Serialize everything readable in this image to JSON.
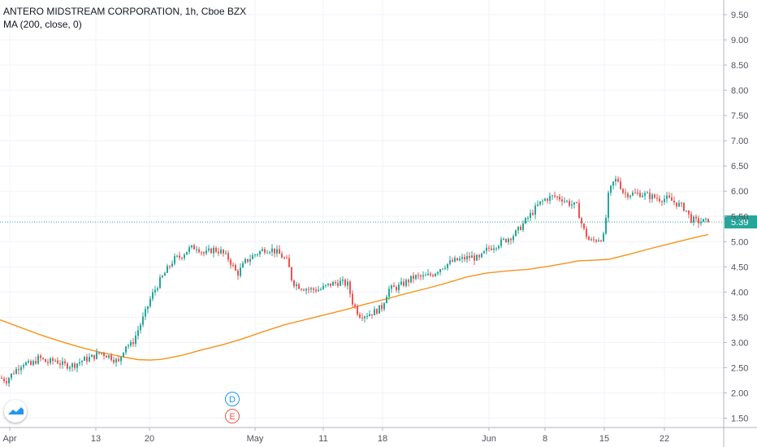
{
  "legend": {
    "title": "ANTERO MIDSTREAM CORPORATION, 1h, Cboe BZX",
    "indicator": "MA (200, close, 0)"
  },
  "markers": {
    "dividend": "D",
    "earnings": "E"
  },
  "colors": {
    "up": "#26a69a",
    "down": "#ef5350",
    "ma": "#f7931a",
    "price_line": "#26a69a",
    "grid": "#f0f3fa",
    "axis_text": "#50535e",
    "dividend_marker": "#2196f3",
    "earnings_marker": "#ef5350"
  },
  "chart_data": {
    "type": "candlestick",
    "symbol": "ANTERO MIDSTREAM CORPORATION",
    "interval": "1h",
    "exchange": "Cboe BZX",
    "x_ticks": [
      "Apr",
      "13",
      "20",
      "May",
      "11",
      "18",
      "Jun",
      "8",
      "15",
      "22"
    ],
    "y_ticks": [
      "1.50",
      "2.00",
      "2.50",
      "3.00",
      "3.50",
      "4.00",
      "4.50",
      "5.00",
      "5.50",
      "6.00",
      "6.50",
      "7.00",
      "7.50",
      "8.00",
      "8.50",
      "9.00",
      "9.50"
    ],
    "ylim": [
      1.35,
      9.65
    ],
    "last_price": "5.39",
    "grid": true,
    "close_path": [
      [
        0,
        2.3
      ],
      [
        8,
        2.25
      ],
      [
        16,
        2.4
      ],
      [
        28,
        2.6
      ],
      [
        38,
        2.55
      ],
      [
        48,
        2.7
      ],
      [
        58,
        2.6
      ],
      [
        68,
        2.65
      ],
      [
        78,
        2.55
      ],
      [
        90,
        2.55
      ],
      [
        102,
        2.65
      ],
      [
        112,
        2.7
      ],
      [
        124,
        2.8
      ],
      [
        138,
        2.7
      ],
      [
        146,
        2.6
      ],
      [
        154,
        2.95
      ],
      [
        162,
        2.95
      ],
      [
        170,
        3.25
      ],
      [
        178,
        3.55
      ],
      [
        186,
        3.9
      ],
      [
        196,
        4.2
      ],
      [
        206,
        4.45
      ],
      [
        214,
        4.65
      ],
      [
        222,
        4.7
      ],
      [
        232,
        4.85
      ],
      [
        242,
        4.9
      ],
      [
        252,
        4.75
      ],
      [
        262,
        4.85
      ],
      [
        272,
        4.8
      ],
      [
        282,
        4.65
      ],
      [
        292,
        4.35
      ],
      [
        302,
        4.6
      ],
      [
        314,
        4.75
      ],
      [
        326,
        4.85
      ],
      [
        334,
        4.85
      ],
      [
        344,
        4.75
      ],
      [
        354,
        4.6
      ],
      [
        360,
        4.2
      ],
      [
        370,
        4.1
      ],
      [
        382,
        4.05
      ],
      [
        394,
        4.05
      ],
      [
        406,
        4.15
      ],
      [
        418,
        4.2
      ],
      [
        428,
        4.15
      ],
      [
        434,
        3.8
      ],
      [
        442,
        3.55
      ],
      [
        450,
        3.55
      ],
      [
        460,
        3.6
      ],
      [
        470,
        3.7
      ],
      [
        478,
        4.05
      ],
      [
        490,
        4.1
      ],
      [
        500,
        4.2
      ],
      [
        510,
        4.3
      ],
      [
        522,
        4.3
      ],
      [
        532,
        4.35
      ],
      [
        544,
        4.5
      ],
      [
        556,
        4.6
      ],
      [
        568,
        4.65
      ],
      [
        580,
        4.7
      ],
      [
        590,
        4.65
      ],
      [
        600,
        4.85
      ],
      [
        612,
        4.95
      ],
      [
        624,
        5.05
      ],
      [
        634,
        5.15
      ],
      [
        644,
        5.35
      ],
      [
        654,
        5.55
      ],
      [
        664,
        5.75
      ],
      [
        672,
        5.85
      ],
      [
        682,
        5.9
      ],
      [
        692,
        5.85
      ],
      [
        702,
        5.75
      ],
      [
        710,
        5.7
      ],
      [
        718,
        5.25
      ],
      [
        726,
        5.0
      ],
      [
        736,
        5.05
      ],
      [
        744,
        5.1
      ],
      [
        748,
        5.85
      ],
      [
        754,
        6.15
      ],
      [
        760,
        6.25
      ],
      [
        768,
        5.95
      ],
      [
        778,
        5.95
      ],
      [
        790,
        5.95
      ],
      [
        800,
        5.9
      ],
      [
        812,
        5.85
      ],
      [
        822,
        5.85
      ],
      [
        834,
        5.75
      ],
      [
        844,
        5.65
      ],
      [
        850,
        5.45
      ],
      [
        858,
        5.4
      ],
      [
        866,
        5.4
      ],
      [
        872,
        5.39
      ]
    ],
    "ma_path": [
      [
        0,
        3.45
      ],
      [
        25,
        3.3
      ],
      [
        50,
        3.15
      ],
      [
        75,
        3.02
      ],
      [
        100,
        2.9
      ],
      [
        125,
        2.8
      ],
      [
        150,
        2.72
      ],
      [
        170,
        2.66
      ],
      [
        185,
        2.65
      ],
      [
        200,
        2.67
      ],
      [
        225,
        2.75
      ],
      [
        250,
        2.86
      ],
      [
        275,
        2.96
      ],
      [
        300,
        3.08
      ],
      [
        325,
        3.22
      ],
      [
        350,
        3.35
      ],
      [
        375,
        3.45
      ],
      [
        400,
        3.55
      ],
      [
        425,
        3.65
      ],
      [
        450,
        3.76
      ],
      [
        475,
        3.86
      ],
      [
        500,
        3.97
      ],
      [
        525,
        4.07
      ],
      [
        550,
        4.18
      ],
      [
        575,
        4.3
      ],
      [
        600,
        4.38
      ],
      [
        625,
        4.42
      ],
      [
        650,
        4.45
      ],
      [
        675,
        4.51
      ],
      [
        700,
        4.58
      ],
      [
        712,
        4.62
      ],
      [
        730,
        4.63
      ],
      [
        750,
        4.65
      ],
      [
        775,
        4.75
      ],
      [
        800,
        4.86
      ],
      [
        825,
        4.96
      ],
      [
        850,
        5.06
      ],
      [
        872,
        5.14
      ]
    ]
  }
}
